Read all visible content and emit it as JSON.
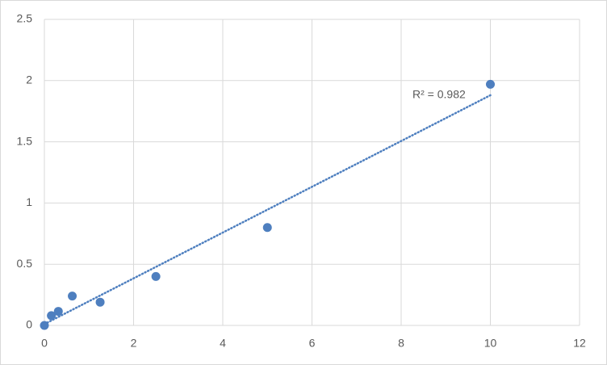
{
  "chart_data": {
    "type": "scatter",
    "x": [
      0,
      0.156,
      0.3125,
      0.625,
      1.25,
      2.5,
      5,
      10
    ],
    "values": [
      0,
      0.08,
      0.115,
      0.24,
      0.19,
      0.4,
      0.8,
      1.97
    ],
    "color": "#4e7fbf",
    "trendline": "linear",
    "annotation": "R² = 0.982",
    "xlim": [
      0,
      12
    ],
    "xticks": [
      0,
      2,
      4,
      6,
      8,
      10,
      12
    ],
    "ylim": [
      0,
      2.5
    ],
    "yticks": [
      0,
      0.5,
      1,
      1.5,
      2,
      2.5
    ],
    "grid": true
  }
}
